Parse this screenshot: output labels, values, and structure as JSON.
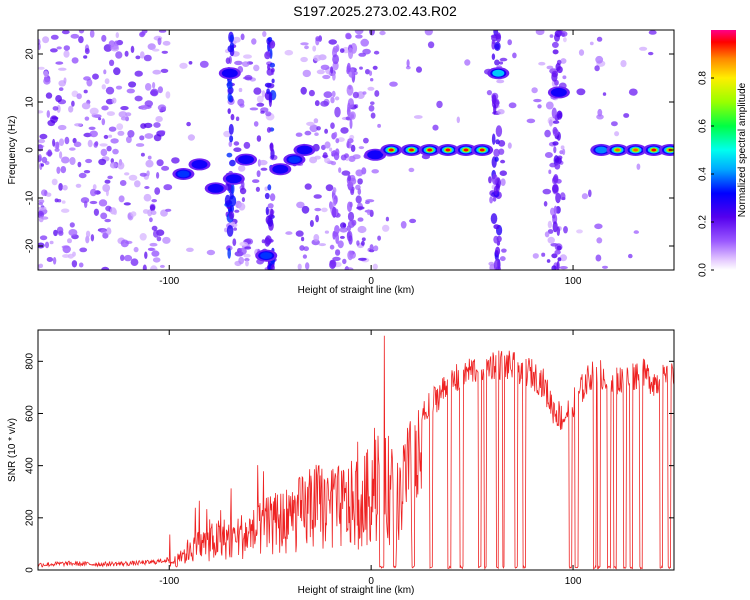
{
  "title": "S197.2025.273.02.43.R02",
  "colors": {
    "snr_line": "#ee2222",
    "axis": "#000000",
    "bg": "#ffffff"
  },
  "chart_data": [
    {
      "type": "heatmap",
      "name": "spectrogram",
      "xlabel": "Height of straight line (km)",
      "ylabel": "Frequency (Hz)",
      "xlim": [
        -165,
        150
      ],
      "ylim": [
        -25,
        25
      ],
      "x_ticks": [
        -100,
        0,
        100
      ],
      "y_ticks": [
        -20,
        -10,
        0,
        10,
        20
      ],
      "colorbar": {
        "label": "Normalized spectral amplitude",
        "range": [
          0.0,
          1.0
        ],
        "ticks": [
          "0.0",
          "0.2",
          "0.4",
          "0.6",
          "0.8"
        ]
      },
      "blobs": [
        {
          "x": -70,
          "y": 16,
          "a": 0.3
        },
        {
          "x": -68,
          "y": -6,
          "a": 0.3
        },
        {
          "x": -52,
          "y": -22,
          "a": 0.35
        },
        {
          "x": -62,
          "y": -2,
          "a": 0.3
        },
        {
          "x": -45,
          "y": -4,
          "a": 0.3
        },
        {
          "x": -38,
          "y": -2,
          "a": 0.35
        },
        {
          "x": -33,
          "y": 0,
          "a": 0.3
        },
        {
          "x": -85,
          "y": -3,
          "a": 0.3
        },
        {
          "x": -77,
          "y": -8,
          "a": 0.3
        },
        {
          "x": -93,
          "y": -5,
          "a": 0.35
        },
        {
          "x": 2,
          "y": -1,
          "a": 0.3
        },
        {
          "x": 10,
          "y": 0,
          "a": 0.95
        },
        {
          "x": 20,
          "y": 0,
          "a": 0.95
        },
        {
          "x": 29,
          "y": 0,
          "a": 0.95
        },
        {
          "x": 38,
          "y": 0,
          "a": 0.95
        },
        {
          "x": 47,
          "y": 0,
          "a": 0.95
        },
        {
          "x": 55,
          "y": 0,
          "a": 0.95
        },
        {
          "x": 63,
          "y": 16,
          "a": 0.45
        },
        {
          "x": 93,
          "y": 12,
          "a": 0.3
        },
        {
          "x": 114,
          "y": 0,
          "a": 0.4
        },
        {
          "x": 122,
          "y": 0,
          "a": 0.9
        },
        {
          "x": 131,
          "y": 0,
          "a": 0.9
        },
        {
          "x": 140,
          "y": 0,
          "a": 0.95
        },
        {
          "x": 148,
          "y": 0,
          "a": 0.9
        }
      ]
    },
    {
      "type": "line",
      "name": "snr",
      "xlabel": "Height of straight line (km)",
      "ylabel": "SNR (10 * v/v)",
      "xlim": [
        -165,
        150
      ],
      "ylim": [
        0,
        920
      ],
      "x_ticks": [
        -100,
        0,
        100
      ],
      "y_ticks": [
        0,
        200,
        400,
        600,
        800
      ],
      "series": [
        {
          "name": "SNR",
          "x": [
            -165,
            -150,
            -135,
            -120,
            -108,
            -100,
            -95,
            -90,
            -85,
            -80,
            -75,
            -70,
            -65,
            -60,
            -55,
            -50,
            -45,
            -40,
            -35,
            -30,
            -25,
            -20,
            -15,
            -10,
            -5,
            -2,
            0,
            3,
            5,
            6,
            8,
            12,
            18,
            25,
            32,
            40,
            48,
            55,
            62,
            70,
            78,
            85,
            90,
            95,
            100,
            105,
            110,
            118,
            125,
            133,
            141,
            150
          ],
          "y": [
            20,
            25,
            22,
            25,
            30,
            40,
            60,
            120,
            150,
            160,
            180,
            190,
            200,
            210,
            240,
            260,
            280,
            300,
            330,
            360,
            380,
            350,
            370,
            380,
            390,
            420,
            460,
            560,
            700,
            900,
            480,
            450,
            520,
            580,
            660,
            720,
            760,
            780,
            790,
            780,
            760,
            720,
            620,
            580,
            640,
            700,
            760,
            740,
            720,
            760,
            720,
            740
          ]
        }
      ],
      "dropouts": [
        [
          4.0,
          6.5
        ],
        [
          11,
          12.5
        ],
        [
          20,
          21.5
        ],
        [
          29,
          30.5
        ],
        [
          38,
          39.5
        ],
        [
          44,
          45.5
        ],
        [
          53,
          54.5
        ],
        [
          56,
          57
        ],
        [
          62,
          63
        ],
        [
          65,
          66
        ],
        [
          71,
          72.5
        ],
        [
          75,
          76.5
        ],
        [
          98,
          99.5
        ],
        [
          101,
          102.5
        ],
        [
          110,
          111.5
        ],
        [
          112,
          113.5
        ],
        [
          117,
          118.5
        ],
        [
          120,
          121.5
        ],
        [
          125,
          126.5
        ],
        [
          128,
          129.5
        ],
        [
          133,
          134.5
        ],
        [
          143,
          144.5
        ],
        [
          147,
          148.5
        ]
      ]
    }
  ]
}
